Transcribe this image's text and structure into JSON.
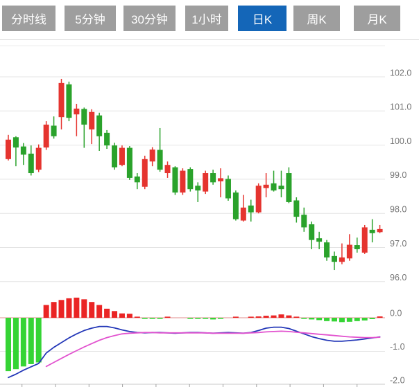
{
  "tabs": [
    {
      "label": "分时线",
      "active": false
    },
    {
      "label": "5分钟",
      "active": false
    },
    {
      "label": "30分钟",
      "active": false
    },
    {
      "label": "1小时",
      "active": false
    },
    {
      "label": "日K",
      "active": true
    },
    {
      "label": "周K",
      "active": false
    },
    {
      "label": "月K",
      "active": false
    }
  ],
  "colors": {
    "tab_bg": "#9e9e9e",
    "tab_active_bg": "#1466b8",
    "tab_text": "#ffffff",
    "up_candle": "#e5342f",
    "down_candle": "#2aa22b",
    "hist_up": "#ea2424",
    "hist_down": "#35d435",
    "dif_line": "#2438b8",
    "dea_line": "#e253cf",
    "grid": "#e4e4e4",
    "separator": "#d6d6d6",
    "zero_line": "#e08c8c",
    "bottom_axis": "#c9c9c9",
    "axis_text": "#757575"
  },
  "chart_data": {
    "type": "candlestick_with_macd",
    "x_count": 50,
    "panels": [
      {
        "name": "price",
        "kind": "candlestick",
        "y_axis": {
          "side": "right",
          "labels": [
            "102.0",
            "101.0",
            "100.0",
            "99.0",
            "98.0",
            "97.0",
            "96.0"
          ],
          "range": [
            95.8,
            103.0
          ]
        },
        "candle_columns": [
          "open",
          "close",
          "high",
          "low"
        ],
        "candles": [
          [
            99.59,
            100.16,
            100.3,
            99.55
          ],
          [
            100.23,
            99.93,
            100.26,
            99.38
          ],
          [
            99.96,
            99.72,
            100.06,
            99.42
          ],
          [
            99.75,
            99.18,
            99.99,
            99.11
          ],
          [
            99.28,
            99.92,
            100.02,
            99.21
          ],
          [
            99.93,
            100.6,
            100.7,
            99.86
          ],
          [
            100.57,
            100.26,
            100.84,
            100.19
          ],
          [
            100.82,
            101.82,
            101.94,
            100.46
          ],
          [
            101.78,
            100.8,
            101.86,
            100.7
          ],
          [
            100.9,
            101.07,
            101.21,
            100.26
          ],
          [
            101.06,
            100.6,
            101.1,
            99.92
          ],
          [
            100.46,
            100.97,
            101.05,
            100.03
          ],
          [
            100.87,
            100.26,
            100.95,
            99.83
          ],
          [
            100.36,
            99.99,
            100.44,
            99.89
          ],
          [
            99.99,
            99.35,
            100.07,
            99.28
          ],
          [
            99.42,
            99.92,
            99.99,
            99.38
          ],
          [
            99.92,
            99.04,
            99.97,
            98.98
          ],
          [
            99.08,
            98.91,
            99.18,
            98.71
          ],
          [
            98.78,
            99.59,
            99.69,
            98.71
          ],
          [
            99.52,
            99.87,
            99.94,
            99.38
          ],
          [
            99.86,
            99.28,
            100.5,
            99.22
          ],
          [
            99.18,
            99.42,
            99.52,
            99.04
          ],
          [
            99.35,
            98.61,
            99.38,
            98.54
          ],
          [
            98.61,
            99.25,
            99.32,
            98.54
          ],
          [
            99.3,
            98.71,
            99.35,
            98.64
          ],
          [
            98.81,
            98.67,
            98.91,
            98.33
          ],
          [
            98.64,
            99.18,
            99.25,
            98.57
          ],
          [
            99.18,
            98.91,
            99.28,
            98.84
          ],
          [
            98.94,
            99.03,
            99.32,
            98.47
          ],
          [
            99.01,
            98.44,
            99.11,
            98.37
          ],
          [
            98.61,
            97.83,
            98.67,
            97.79
          ],
          [
            97.79,
            98.17,
            98.54,
            97.76
          ],
          [
            98.23,
            98.03,
            98.4,
            97.76
          ],
          [
            98.03,
            98.81,
            98.88,
            98.0
          ],
          [
            98.74,
            98.84,
            99.18,
            98.47
          ],
          [
            98.88,
            98.67,
            99.25,
            98.64
          ],
          [
            98.81,
            98.71,
            99.25,
            98.47
          ],
          [
            99.18,
            98.33,
            99.35,
            98.3
          ],
          [
            98.38,
            97.9,
            98.47,
            97.73
          ],
          [
            97.96,
            97.59,
            98.17,
            97.46
          ],
          [
            97.68,
            97.22,
            97.76,
            96.95
          ],
          [
            97.27,
            97.17,
            97.46,
            96.95
          ],
          [
            97.15,
            96.71,
            97.22,
            96.61
          ],
          [
            96.75,
            96.58,
            96.88,
            96.34
          ],
          [
            96.58,
            96.71,
            97.12,
            96.51
          ],
          [
            96.68,
            97.08,
            97.39,
            96.61
          ],
          [
            97.07,
            96.95,
            97.29,
            96.85
          ],
          [
            96.85,
            97.59,
            97.66,
            96.81
          ],
          [
            97.52,
            97.42,
            97.83,
            97.15
          ],
          [
            97.45,
            97.54,
            97.66,
            97.42
          ]
        ]
      },
      {
        "name": "macd",
        "kind": "macd",
        "y_axis": {
          "side": "right",
          "labels": [
            "0.0",
            "-1.0",
            "-2.0"
          ],
          "range": [
            -2.1,
            0.7
          ]
        },
        "histogram": [
          -1.59,
          -1.53,
          -1.45,
          -1.38,
          -1.33,
          0.38,
          0.47,
          0.53,
          0.58,
          0.6,
          0.55,
          0.47,
          0.38,
          0.27,
          0.2,
          0.13,
          0.12,
          0.03,
          -0.03,
          -0.03,
          -0.03,
          0.02,
          0.0,
          0.0,
          -0.03,
          -0.03,
          -0.03,
          -0.05,
          -0.03,
          0.0,
          0.03,
          0.0,
          0.03,
          0.04,
          0.06,
          0.07,
          0.1,
          0.07,
          0.03,
          -0.03,
          -0.05,
          -0.07,
          -0.1,
          -0.11,
          -0.13,
          -0.12,
          -0.1,
          -0.08,
          -0.04,
          0.04
        ],
        "dif": [
          -1.78,
          -1.68,
          -1.56,
          -1.46,
          -1.36,
          -1.05,
          -0.88,
          -0.74,
          -0.6,
          -0.48,
          -0.38,
          -0.31,
          -0.26,
          -0.26,
          -0.3,
          -0.36,
          -0.41,
          -0.44,
          -0.45,
          -0.44,
          -0.44,
          -0.45,
          -0.46,
          -0.45,
          -0.44,
          -0.44,
          -0.45,
          -0.46,
          -0.45,
          -0.44,
          -0.45,
          -0.46,
          -0.44,
          -0.38,
          -0.31,
          -0.28,
          -0.28,
          -0.32,
          -0.4,
          -0.48,
          -0.56,
          -0.62,
          -0.67,
          -0.7,
          -0.7,
          -0.68,
          -0.66,
          -0.63,
          -0.6,
          -0.57
        ],
        "dea": [
          null,
          null,
          null,
          null,
          null,
          -1.45,
          -1.33,
          -1.21,
          -1.09,
          -0.98,
          -0.87,
          -0.77,
          -0.67,
          -0.59,
          -0.53,
          -0.48,
          -0.46,
          -0.45,
          -0.44,
          -0.44,
          -0.45,
          -0.45,
          -0.45,
          -0.45,
          -0.45,
          -0.45,
          -0.45,
          -0.46,
          -0.46,
          -0.46,
          -0.46,
          -0.46,
          -0.45,
          -0.44,
          -0.42,
          -0.41,
          -0.4,
          -0.41,
          -0.43,
          -0.45,
          -0.47,
          -0.49,
          -0.51,
          -0.53,
          -0.55,
          -0.57,
          -0.58,
          -0.59,
          -0.59,
          -0.58
        ]
      }
    ]
  }
}
